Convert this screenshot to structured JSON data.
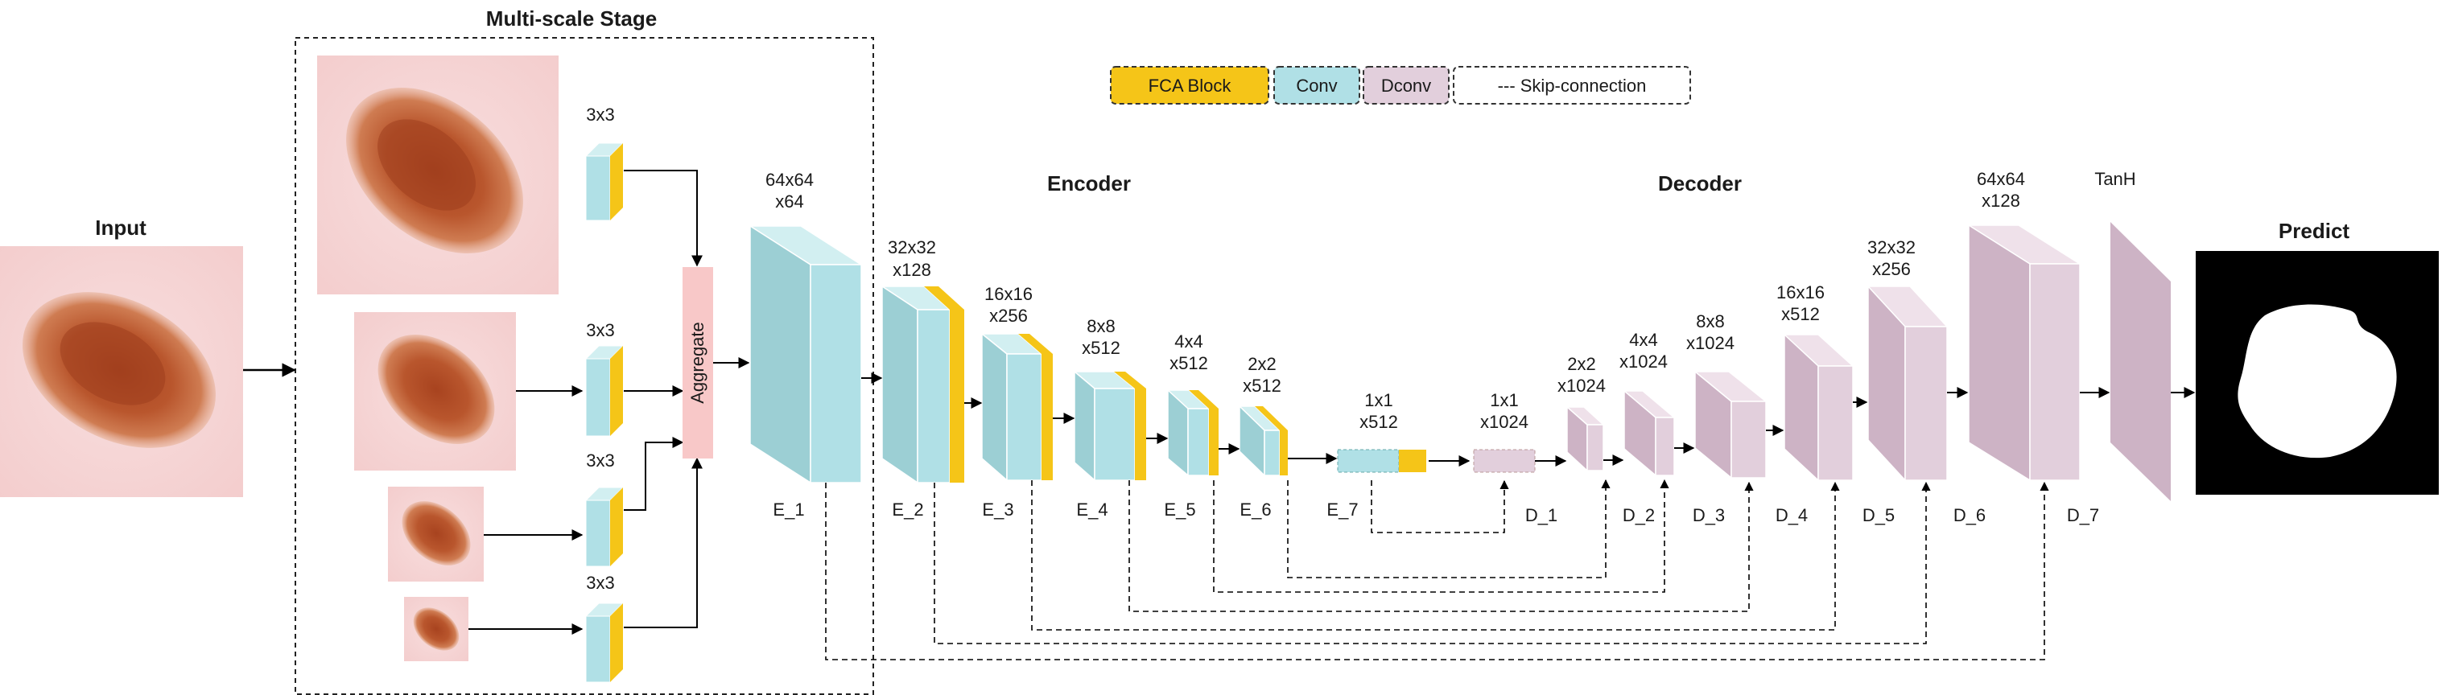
{
  "titles": {
    "multiscale": "Multi-scale Stage",
    "input": "Input",
    "encoder": "Encoder",
    "decoder": "Decoder",
    "predict": "Predict",
    "tanh": "TanH"
  },
  "legend": {
    "fca": "FCA Block",
    "conv": "Conv",
    "dconv": "Dconv",
    "skip": "--- Skip-connection"
  },
  "multiscale": {
    "kernel_labels": [
      "3x3",
      "3x3",
      "3x3",
      "3x3"
    ],
    "aggregate": "Aggregate"
  },
  "encoder": {
    "names": [
      "E_1",
      "E_2",
      "E_3",
      "E_4",
      "E_5",
      "E_6",
      "E_7"
    ],
    "sizes": [
      [
        "64x64",
        "x64"
      ],
      [
        "32x32",
        "x128"
      ],
      [
        "16x16",
        "x256"
      ],
      [
        "8x8",
        "x512"
      ],
      [
        "4x4",
        "x512"
      ],
      [
        "2x2",
        "x512"
      ],
      [
        "1x1",
        "x512"
      ]
    ]
  },
  "decoder": {
    "names": [
      "D_1",
      "D_2",
      "D_3",
      "D_4",
      "D_5",
      "D_6",
      "D_7"
    ],
    "sizes": [
      [
        "1x1",
        "x1024"
      ],
      [
        "2x2",
        "x1024"
      ],
      [
        "4x4",
        "x1024"
      ],
      [
        "8x8",
        "x1024"
      ],
      [
        "16x16",
        "x512"
      ],
      [
        "32x32",
        "x256"
      ],
      [
        "64x64",
        "x128"
      ]
    ]
  },
  "colors": {
    "conv": "#b0e0e6",
    "conv_side": "#9ccfd4",
    "conv_top": "#d2eff1",
    "fca": "#f5c518",
    "dconv": "#e2cfdc",
    "dconv_side": "#cdb3c5",
    "dconv_top": "#efe1ea",
    "aggregate": "#f8c8c8",
    "tanh": "#cdb3c5"
  }
}
